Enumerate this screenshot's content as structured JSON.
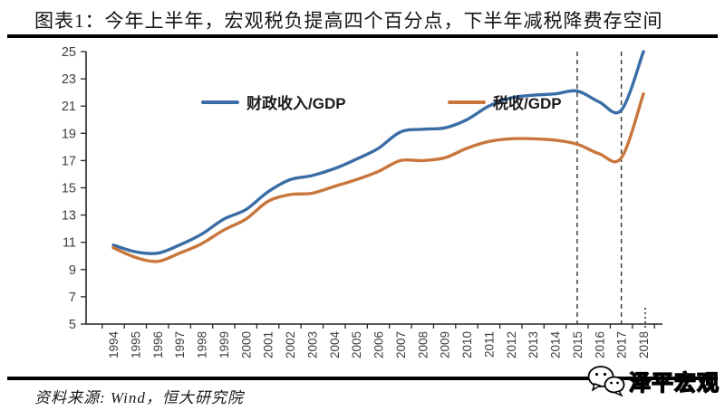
{
  "header": {
    "title": "图表1：今年上半年，宏观税负提高四个百分点，下半年减税降费存空间"
  },
  "footer": {
    "source": "资料来源: Wind，恒大研究院",
    "watermark": "泽平宏观",
    "watermark_icon": "chat-bubbles-icon"
  },
  "colors": {
    "series1": "#3a6da5",
    "series2": "#c8763c",
    "axis": "#262626",
    "tick_label": "#3f3f3f",
    "dashed": "#404040",
    "rule": "#000000"
  },
  "chart_data": {
    "type": "line",
    "title": "",
    "xlabel": "",
    "ylabel": "",
    "categories": [
      "1994",
      "1995",
      "1996",
      "1997",
      "1998",
      "1999",
      "2000",
      "2001",
      "2002",
      "2003",
      "2004",
      "2005",
      "2006",
      "2007",
      "2008",
      "2009",
      "2010",
      "2011",
      "2012",
      "2013",
      "2014",
      "2015",
      "2016",
      "2017",
      "2018"
    ],
    "series": [
      {
        "name": "财政收入/GDP",
        "color": "#3a6da5",
        "values": [
          10.8,
          10.3,
          10.2,
          10.8,
          11.6,
          12.7,
          13.4,
          14.7,
          15.6,
          15.9,
          16.4,
          17.1,
          17.9,
          19.1,
          19.3,
          19.4,
          20.0,
          21.0,
          21.6,
          21.8,
          21.9,
          22.1,
          21.3,
          20.7,
          25.0
        ]
      },
      {
        "name": "税收/GDP",
        "color": "#c8763c",
        "values": [
          10.6,
          9.9,
          9.6,
          10.2,
          10.9,
          11.9,
          12.7,
          14.0,
          14.5,
          14.6,
          15.1,
          15.6,
          16.2,
          17.0,
          17.0,
          17.2,
          17.9,
          18.4,
          18.6,
          18.6,
          18.5,
          18.2,
          17.5,
          17.2,
          21.9
        ]
      }
    ],
    "ylim": [
      5,
      25
    ],
    "ytick_step": 2,
    "yticks": [
      5,
      7,
      9,
      11,
      13,
      15,
      17,
      19,
      21,
      23,
      25
    ],
    "grid": false,
    "legend_position": "top-inside",
    "line_style": "smooth",
    "annotations": {
      "dashed_vlines": [
        "2015",
        "2017"
      ],
      "dotted_axis_mark": "2018"
    }
  }
}
